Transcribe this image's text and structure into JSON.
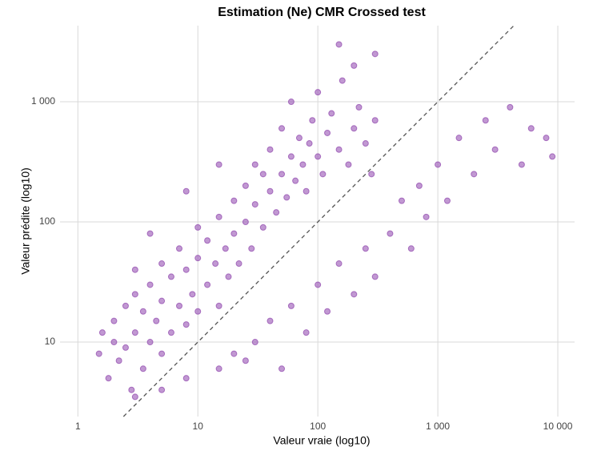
{
  "chart_data": {
    "type": "scatter",
    "title": "Estimation (Ne) CMR Crossed test",
    "x_label": "Valeur vraie (log10)",
    "y_label": "Valeur prédite (log10)",
    "log_x": true,
    "log_y": true,
    "grid": true,
    "identity_line": true,
    "color": "#8e44ad",
    "xlim": [
      0.71,
      13800
    ],
    "ylim": [
      2.4,
      4300
    ],
    "xticks": [
      1,
      10,
      100,
      {
        "value": 1000,
        "label": "1 000"
      },
      {
        "value": 10000,
        "label": "10 000"
      }
    ],
    "yticks": [
      10,
      100,
      {
        "value": 1000,
        "label": "1 000"
      }
    ],
    "x": [
      1.5,
      1.6,
      1.8,
      2,
      2,
      2.2,
      2.5,
      2.5,
      2.8,
      3,
      3,
      3.5,
      3.5,
      4,
      4,
      4.5,
      5,
      5,
      5,
      6,
      6,
      7,
      7,
      8,
      8,
      9,
      10,
      10,
      10,
      12,
      12,
      14,
      15,
      15,
      17,
      18,
      20,
      20,
      22,
      25,
      25,
      28,
      30,
      30,
      35,
      35,
      40,
      40,
      45,
      50,
      50,
      55,
      60,
      65,
      70,
      75,
      80,
      85,
      90,
      100,
      100,
      110,
      120,
      130,
      150,
      160,
      180,
      200,
      220,
      250,
      280,
      300,
      20,
      30,
      40,
      50,
      60,
      80,
      100,
      120,
      150,
      200,
      250,
      300,
      400,
      500,
      600,
      700,
      800,
      1000,
      1200,
      1500,
      2000,
      2500,
      3000,
      4000,
      5000,
      6000,
      8000,
      9000,
      3,
      4,
      8,
      15,
      60,
      150,
      200,
      300,
      3,
      5,
      8,
      15,
      25
    ],
    "values": [
      8,
      12,
      5,
      10,
      15,
      7,
      20,
      9,
      4,
      12,
      25,
      6,
      18,
      10,
      30,
      15,
      8,
      22,
      45,
      12,
      35,
      20,
      60,
      14,
      40,
      25,
      18,
      50,
      90,
      30,
      70,
      45,
      20,
      110,
      60,
      35,
      80,
      150,
      45,
      100,
      200,
      60,
      140,
      300,
      90,
      250,
      180,
      400,
      120,
      250,
      600,
      160,
      350,
      220,
      500,
      300,
      180,
      450,
      700,
      350,
      1200,
      250,
      550,
      800,
      400,
      1500,
      300,
      600,
      900,
      450,
      250,
      700,
      8,
      10,
      15,
      6,
      20,
      12,
      30,
      18,
      45,
      25,
      60,
      35,
      80,
      150,
      60,
      200,
      110,
      300,
      150,
      500,
      250,
      700,
      400,
      900,
      300,
      600,
      500,
      350,
      40,
      80,
      180,
      300,
      1000,
      3000,
      2000,
      2500,
      3.5,
      4,
      5,
      6,
      7
    ]
  }
}
